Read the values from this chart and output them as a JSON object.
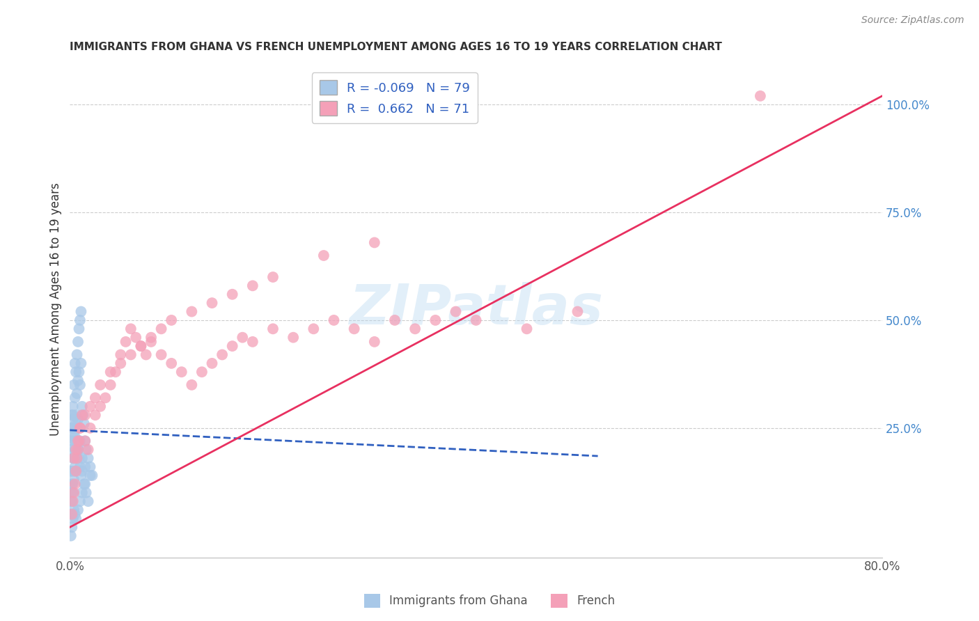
{
  "title": "IMMIGRANTS FROM GHANA VS FRENCH UNEMPLOYMENT AMONG AGES 16 TO 19 YEARS CORRELATION CHART",
  "source": "Source: ZipAtlas.com",
  "ylabel": "Unemployment Among Ages 16 to 19 years",
  "xlim": [
    0.0,
    0.8
  ],
  "ylim": [
    -0.05,
    1.1
  ],
  "yticks_right": [
    0.0,
    0.25,
    0.5,
    0.75,
    1.0
  ],
  "ytick_right_labels": [
    "",
    "25.0%",
    "50.0%",
    "75.0%",
    "100.0%"
  ],
  "legend_labels": [
    "Immigrants from Ghana",
    "French"
  ],
  "R_ghana": -0.069,
  "N_ghana": 79,
  "R_french": 0.662,
  "N_french": 71,
  "blue_color": "#a8c8e8",
  "pink_color": "#f4a0b8",
  "trend_blue": "#3060c0",
  "trend_pink": "#e83060",
  "watermark": "ZIPatlas",
  "ghana_scatter_x": [
    0.001,
    0.001,
    0.002,
    0.002,
    0.002,
    0.002,
    0.003,
    0.003,
    0.003,
    0.003,
    0.004,
    0.004,
    0.004,
    0.005,
    0.005,
    0.005,
    0.005,
    0.006,
    0.006,
    0.006,
    0.007,
    0.007,
    0.007,
    0.008,
    0.008,
    0.008,
    0.009,
    0.009,
    0.01,
    0.01,
    0.011,
    0.011,
    0.012,
    0.013,
    0.014,
    0.015,
    0.016,
    0.018,
    0.02,
    0.022,
    0.001,
    0.001,
    0.002,
    0.002,
    0.003,
    0.003,
    0.004,
    0.004,
    0.005,
    0.005,
    0.006,
    0.007,
    0.008,
    0.009,
    0.01,
    0.011,
    0.012,
    0.014,
    0.016,
    0.018,
    0.001,
    0.002,
    0.003,
    0.004,
    0.005,
    0.006,
    0.008,
    0.01,
    0.012,
    0.015,
    0.003,
    0.004,
    0.005,
    0.006,
    0.008,
    0.01,
    0.012,
    0.015,
    0.02
  ],
  "ghana_scatter_y": [
    0.2,
    0.15,
    0.25,
    0.22,
    0.28,
    0.1,
    0.3,
    0.27,
    0.18,
    0.12,
    0.35,
    0.24,
    0.18,
    0.4,
    0.32,
    0.22,
    0.15,
    0.38,
    0.28,
    0.2,
    0.42,
    0.33,
    0.25,
    0.45,
    0.36,
    0.27,
    0.48,
    0.38,
    0.5,
    0.35,
    0.52,
    0.4,
    0.3,
    0.28,
    0.26,
    0.22,
    0.2,
    0.18,
    0.16,
    0.14,
    0.08,
    0.05,
    0.12,
    0.08,
    0.15,
    0.1,
    0.18,
    0.13,
    0.2,
    0.16,
    0.22,
    0.18,
    0.2,
    0.18,
    0.16,
    0.14,
    0.15,
    0.12,
    0.1,
    0.08,
    0.0,
    0.02,
    0.04,
    0.06,
    0.05,
    0.04,
    0.06,
    0.08,
    0.1,
    0.12,
    0.28,
    0.25,
    0.23,
    0.26,
    0.2,
    0.22,
    0.18,
    0.16,
    0.14
  ],
  "french_scatter_x": [
    0.002,
    0.003,
    0.004,
    0.005,
    0.006,
    0.007,
    0.008,
    0.009,
    0.01,
    0.012,
    0.015,
    0.018,
    0.02,
    0.025,
    0.03,
    0.035,
    0.04,
    0.045,
    0.05,
    0.055,
    0.06,
    0.065,
    0.07,
    0.075,
    0.08,
    0.09,
    0.1,
    0.11,
    0.12,
    0.13,
    0.14,
    0.15,
    0.16,
    0.17,
    0.18,
    0.2,
    0.22,
    0.24,
    0.26,
    0.28,
    0.3,
    0.32,
    0.34,
    0.36,
    0.38,
    0.4,
    0.45,
    0.5,
    0.004,
    0.006,
    0.008,
    0.01,
    0.015,
    0.02,
    0.025,
    0.03,
    0.04,
    0.05,
    0.06,
    0.07,
    0.08,
    0.09,
    0.1,
    0.12,
    0.14,
    0.16,
    0.18,
    0.2,
    0.25,
    0.3,
    0.68
  ],
  "french_scatter_y": [
    0.05,
    0.08,
    0.1,
    0.12,
    0.15,
    0.18,
    0.2,
    0.22,
    0.25,
    0.28,
    0.22,
    0.2,
    0.25,
    0.28,
    0.3,
    0.32,
    0.35,
    0.38,
    0.42,
    0.45,
    0.48,
    0.46,
    0.44,
    0.42,
    0.45,
    0.42,
    0.4,
    0.38,
    0.35,
    0.38,
    0.4,
    0.42,
    0.44,
    0.46,
    0.45,
    0.48,
    0.46,
    0.48,
    0.5,
    0.48,
    0.45,
    0.5,
    0.48,
    0.5,
    0.52,
    0.5,
    0.48,
    0.52,
    0.18,
    0.2,
    0.22,
    0.25,
    0.28,
    0.3,
    0.32,
    0.35,
    0.38,
    0.4,
    0.42,
    0.44,
    0.46,
    0.48,
    0.5,
    0.52,
    0.54,
    0.56,
    0.58,
    0.6,
    0.65,
    0.68,
    1.02
  ],
  "blue_trend_x": [
    0.0,
    0.52
  ],
  "blue_trend_y": [
    0.245,
    0.185
  ],
  "pink_trend_x": [
    0.0,
    0.8
  ],
  "pink_trend_y": [
    0.02,
    1.02
  ]
}
